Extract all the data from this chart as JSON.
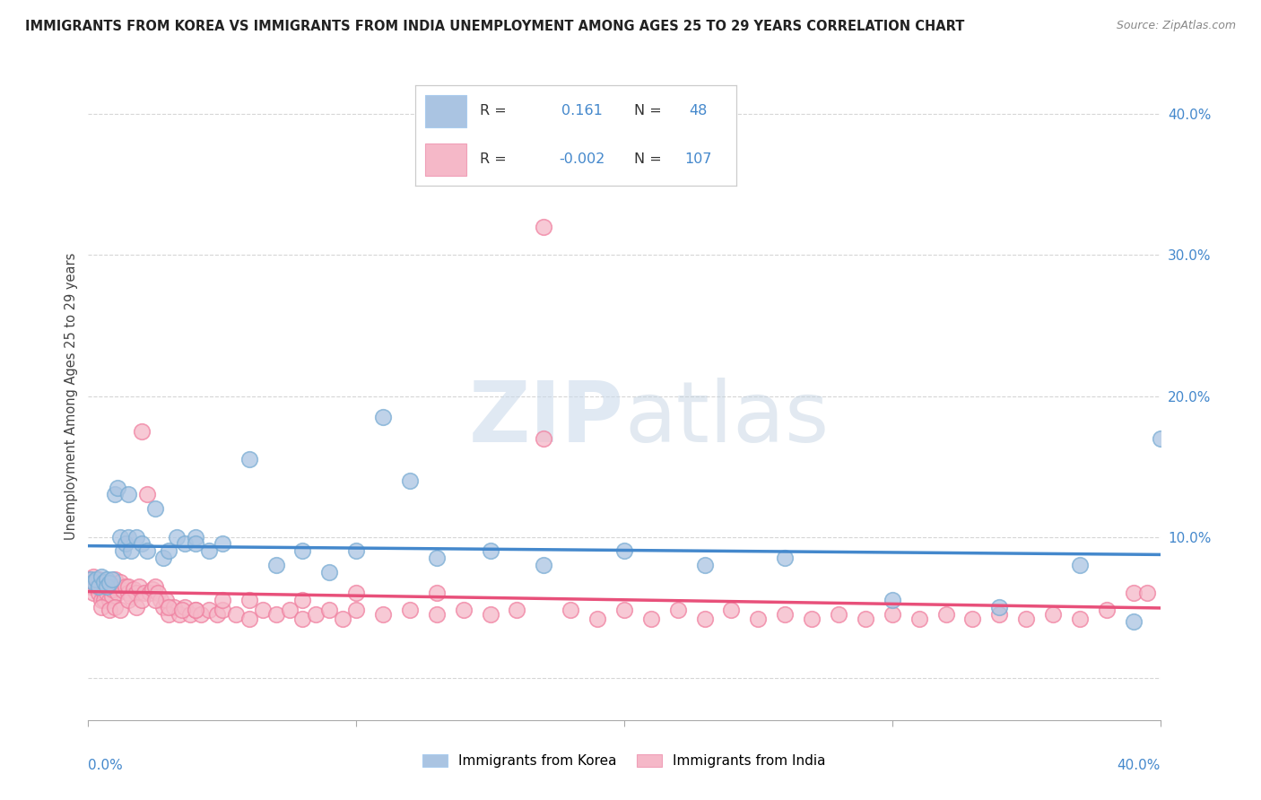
{
  "title": "IMMIGRANTS FROM KOREA VS IMMIGRANTS FROM INDIA UNEMPLOYMENT AMONG AGES 25 TO 29 YEARS CORRELATION CHART",
  "source": "Source: ZipAtlas.com",
  "ylabel": "Unemployment Among Ages 25 to 29 years",
  "xlim": [
    0.0,
    0.4
  ],
  "ylim": [
    -0.03,
    0.43
  ],
  "korea_R": 0.161,
  "korea_N": 48,
  "india_R": -0.002,
  "india_N": 107,
  "korea_color": "#aac4e2",
  "india_color": "#f5b8c8",
  "korea_edge_color": "#7aadd4",
  "india_edge_color": "#f080a0",
  "korea_line_color": "#4488cc",
  "india_line_color": "#e8507a",
  "watermark_color": "#d0dae8",
  "background_color": "#ffffff",
  "legend_R_color": "#333333",
  "legend_N_color": "#4488cc",
  "legend_val_color": "#4488cc",
  "korea_x": [
    0.001,
    0.002,
    0.003,
    0.004,
    0.005,
    0.006,
    0.007,
    0.007,
    0.008,
    0.009,
    0.01,
    0.011,
    0.012,
    0.013,
    0.014,
    0.015,
    0.016,
    0.018,
    0.02,
    0.022,
    0.025,
    0.028,
    0.03,
    0.033,
    0.036,
    0.04,
    0.045,
    0.05,
    0.06,
    0.07,
    0.08,
    0.09,
    0.1,
    0.11,
    0.12,
    0.13,
    0.15,
    0.17,
    0.2,
    0.23,
    0.26,
    0.3,
    0.34,
    0.37,
    0.39,
    0.4,
    0.015,
    0.04
  ],
  "korea_y": [
    0.07,
    0.068,
    0.07,
    0.065,
    0.072,
    0.068,
    0.07,
    0.065,
    0.067,
    0.07,
    0.13,
    0.135,
    0.1,
    0.09,
    0.095,
    0.1,
    0.09,
    0.1,
    0.095,
    0.09,
    0.12,
    0.085,
    0.09,
    0.1,
    0.095,
    0.1,
    0.09,
    0.095,
    0.155,
    0.08,
    0.09,
    0.075,
    0.09,
    0.185,
    0.14,
    0.085,
    0.09,
    0.08,
    0.09,
    0.08,
    0.085,
    0.055,
    0.05,
    0.08,
    0.04,
    0.17,
    0.13,
    0.095
  ],
  "india_x": [
    0.001,
    0.001,
    0.002,
    0.002,
    0.003,
    0.003,
    0.004,
    0.004,
    0.005,
    0.005,
    0.006,
    0.006,
    0.007,
    0.007,
    0.008,
    0.008,
    0.009,
    0.009,
    0.01,
    0.01,
    0.011,
    0.012,
    0.013,
    0.014,
    0.015,
    0.015,
    0.016,
    0.017,
    0.018,
    0.019,
    0.02,
    0.021,
    0.022,
    0.023,
    0.024,
    0.025,
    0.026,
    0.027,
    0.028,
    0.029,
    0.03,
    0.032,
    0.034,
    0.036,
    0.038,
    0.04,
    0.042,
    0.045,
    0.048,
    0.05,
    0.055,
    0.06,
    0.065,
    0.07,
    0.075,
    0.08,
    0.085,
    0.09,
    0.095,
    0.1,
    0.11,
    0.12,
    0.13,
    0.14,
    0.15,
    0.16,
    0.17,
    0.18,
    0.19,
    0.2,
    0.21,
    0.22,
    0.23,
    0.24,
    0.25,
    0.26,
    0.27,
    0.28,
    0.29,
    0.3,
    0.31,
    0.32,
    0.33,
    0.34,
    0.35,
    0.36,
    0.37,
    0.38,
    0.39,
    0.395,
    0.005,
    0.008,
    0.01,
    0.012,
    0.015,
    0.018,
    0.02,
    0.025,
    0.03,
    0.035,
    0.04,
    0.05,
    0.06,
    0.08,
    0.1,
    0.13,
    0.17
  ],
  "india_y": [
    0.07,
    0.065,
    0.072,
    0.06,
    0.068,
    0.065,
    0.07,
    0.06,
    0.055,
    0.065,
    0.06,
    0.055,
    0.065,
    0.06,
    0.055,
    0.065,
    0.058,
    0.063,
    0.07,
    0.065,
    0.06,
    0.068,
    0.062,
    0.065,
    0.06,
    0.065,
    0.058,
    0.063,
    0.06,
    0.065,
    0.175,
    0.06,
    0.13,
    0.06,
    0.063,
    0.065,
    0.06,
    0.055,
    0.05,
    0.055,
    0.045,
    0.05,
    0.045,
    0.05,
    0.045,
    0.048,
    0.045,
    0.048,
    0.045,
    0.048,
    0.045,
    0.042,
    0.048,
    0.045,
    0.048,
    0.042,
    0.045,
    0.048,
    0.042,
    0.048,
    0.045,
    0.048,
    0.045,
    0.048,
    0.045,
    0.048,
    0.17,
    0.048,
    0.042,
    0.048,
    0.042,
    0.048,
    0.042,
    0.048,
    0.042,
    0.045,
    0.042,
    0.045,
    0.042,
    0.045,
    0.042,
    0.045,
    0.042,
    0.045,
    0.042,
    0.045,
    0.042,
    0.048,
    0.06,
    0.06,
    0.05,
    0.048,
    0.05,
    0.048,
    0.055,
    0.05,
    0.055,
    0.055,
    0.05,
    0.048,
    0.048,
    0.055,
    0.055,
    0.055,
    0.06,
    0.06,
    0.32
  ]
}
